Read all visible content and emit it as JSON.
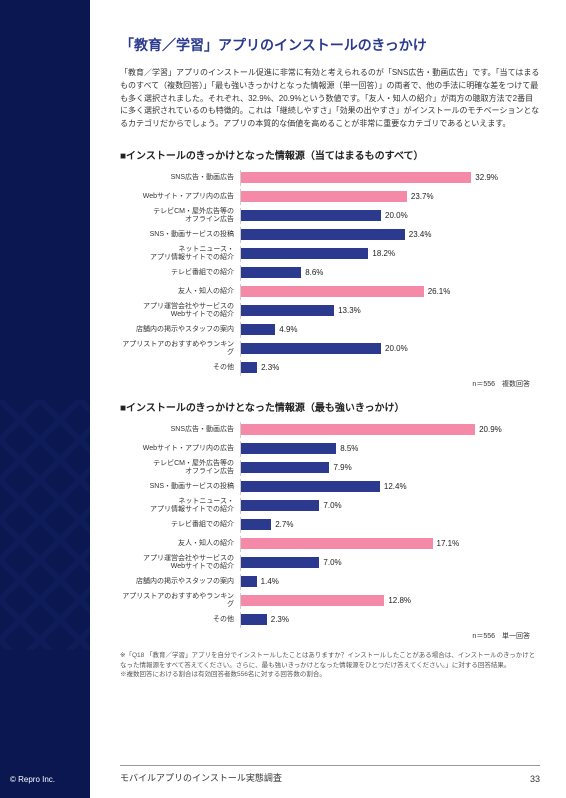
{
  "page": {
    "title": "「教育／学習」アプリのインストールのきっかけ",
    "body": "「教育／学習」アプリのインストール促進に非常に有効と考えられるのが「SNS広告・動画広告」です。「当てはまるものすべて（複数回答）」「最も強いきっかけとなった情報源（単一回答）」の両者で、他の手法に明確な差をつけて最も多く選択されました。それぞれ、32.9%、20.9%という数値です。「友人・知人の紹介」が両方の聴取方法で2番目に多く選択されているのも特徴的。これは「継続しやすさ」「効果の出やすさ」がインストールのモチベーションとなるカテゴリだからでしょう。アプリの本質的な価値を高めることが非常に重要なカテゴリであるといえます。"
  },
  "colors": {
    "bar_normal": "#2b3a8f",
    "bar_highlight": "#f48aa8",
    "title": "#2b3a8f"
  },
  "chart1": {
    "title": "■インストールのきっかけとなった情報源（当てはまるものすべて）",
    "max": 40,
    "n_text": "n＝556　複数回答",
    "items": [
      {
        "label": "SNS広告・動画広告",
        "value": 32.9,
        "highlight": true
      },
      {
        "label": "Webサイト・アプリ内の広告",
        "value": 23.7,
        "highlight": true
      },
      {
        "label": "テレビCM・屋外広告等の\nオフライン広告",
        "value": 20.0,
        "highlight": false
      },
      {
        "label": "SNS・動画サービスの投稿",
        "value": 23.4,
        "highlight": false
      },
      {
        "label": "ネットニュース・\nアプリ情報サイトでの紹介",
        "value": 18.2,
        "highlight": false
      },
      {
        "label": "テレビ番組での紹介",
        "value": 8.6,
        "highlight": false
      },
      {
        "label": "友人・知人の紹介",
        "value": 26.1,
        "highlight": true
      },
      {
        "label": "アプリ運営会社やサービスの\nWebサイトでの紹介",
        "value": 13.3,
        "highlight": false
      },
      {
        "label": "店舗内の掲示やスタッフの案内",
        "value": 4.9,
        "highlight": false
      },
      {
        "label": "アプリストアのおすすめやランキング",
        "value": 20.0,
        "highlight": false
      },
      {
        "label": "その他",
        "value": 2.3,
        "highlight": false
      }
    ]
  },
  "chart2": {
    "title": "■インストールのきっかけとなった情報源（最も強いきっかけ）",
    "max": 25,
    "n_text": "n＝556　単一回答",
    "items": [
      {
        "label": "SNS広告・動画広告",
        "value": 20.9,
        "highlight": true
      },
      {
        "label": "Webサイト・アプリ内の広告",
        "value": 8.5,
        "highlight": false
      },
      {
        "label": "テレビCM・屋外広告等の\nオフライン広告",
        "value": 7.9,
        "highlight": false
      },
      {
        "label": "SNS・動画サービスの投稿",
        "value": 12.4,
        "highlight": false
      },
      {
        "label": "ネットニュース・\nアプリ情報サイトでの紹介",
        "value": 7.0,
        "highlight": false
      },
      {
        "label": "テレビ番組での紹介",
        "value": 2.7,
        "highlight": false
      },
      {
        "label": "友人・知人の紹介",
        "value": 17.1,
        "highlight": true
      },
      {
        "label": "アプリ運営会社やサービスの\nWebサイトでの紹介",
        "value": 7.0,
        "highlight": false
      },
      {
        "label": "店舗内の掲示やスタッフの案内",
        "value": 1.4,
        "highlight": false
      },
      {
        "label": "アプリストアのおすすめやランキング",
        "value": 12.8,
        "highlight": true
      },
      {
        "label": "その他",
        "value": 2.3,
        "highlight": false
      }
    ]
  },
  "footnote": {
    "line1": "※「Q18 「教育／学習」アプリを自分でインストールしたことはありますか？インストールしたことがある場合は、インストールのきっかけとなった情報源をすべて答えてください。さらに、最も強いきっかけとなった情報源をひとつだけ答えてください。」に対する回答結果。",
    "line2": "※複数回答における割合は有効回答者数556名に対する回答数の割合。"
  },
  "footer": {
    "title": "モバイルアプリのインストール実態調査",
    "page": "33",
    "copyright": "© Repro Inc."
  }
}
